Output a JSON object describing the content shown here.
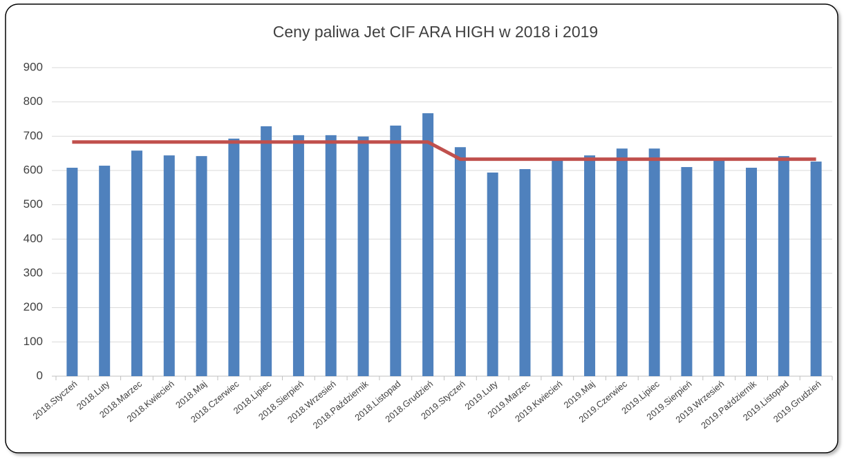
{
  "chart_data": {
    "type": "bar",
    "title": "Ceny paliwa Jet CIF ARA  HIGH w 2018 i 2019",
    "categories": [
      "2018.Styczeń",
      "2018.Luty",
      "2018.Marzec",
      "2018.Kwiecień",
      "2018.Maj",
      "2018.Czerwiec",
      "2018.Lipiec",
      "2018.Sierpień",
      "2018.Wrzesień",
      "2018.Październik",
      "2018.Listopad",
      "2018.Grudzień",
      "2019.Styczeń",
      "2019.Luty",
      "2019.Marzec",
      "2019.Kwiecień",
      "2019.Maj",
      "2019.Czerwiec",
      "2019.Lipiec",
      "2019.Sierpień",
      "2019.Wrzesień",
      "2019.Październik",
      "2019.Listopad",
      "2019.Grudzień"
    ],
    "series": [
      {
        "type": "bar",
        "color": "#4f81bd",
        "values": [
          608,
          614,
          658,
          644,
          642,
          693,
          729,
          703,
          703,
          699,
          731,
          767,
          668,
          594,
          604,
          634,
          644,
          664,
          664,
          610,
          636,
          608,
          642,
          626
        ]
      },
      {
        "type": "line",
        "color": "#c0504d",
        "values": [
          683,
          683,
          683,
          683,
          683,
          683,
          683,
          683,
          683,
          683,
          683,
          683,
          633,
          633,
          633,
          633,
          633,
          633,
          633,
          633,
          633,
          633,
          633,
          633
        ]
      }
    ],
    "ylim": [
      0,
      900
    ],
    "yticks": [
      0,
      100,
      200,
      300,
      400,
      500,
      600,
      700,
      800,
      900
    ],
    "grid": true
  }
}
